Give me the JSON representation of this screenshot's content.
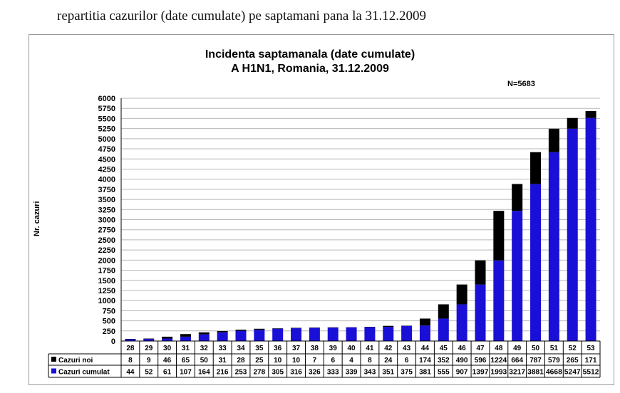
{
  "caption": "repartitia cazurilor (date cumulate) pe saptamani pana la 31.12.2009",
  "chart_data": {
    "type": "bar",
    "stacked": true,
    "title": "Incidenta saptamanala (date cumulate)",
    "subtitle": "A H1N1, Romania,  31.12.2009",
    "annotation": "N=5683",
    "ylabel": "Nr. cazuri",
    "xlabel": "",
    "ylim": [
      0,
      6000
    ],
    "yticks": [
      0,
      250,
      500,
      750,
      1000,
      1250,
      1500,
      1750,
      2000,
      2250,
      2500,
      2750,
      3000,
      3250,
      3500,
      3750,
      4000,
      4250,
      4500,
      4750,
      5000,
      5250,
      5500,
      5750,
      6000
    ],
    "grid": true,
    "categories": [
      "28",
      "29",
      "30",
      "31",
      "32",
      "33",
      "34",
      "35",
      "36",
      "37",
      "38",
      "39",
      "40",
      "41",
      "42",
      "43",
      "44",
      "45",
      "46",
      "47",
      "48",
      "49",
      "50",
      "51",
      "52",
      "53"
    ],
    "series": [
      {
        "name": "Cazuri cumulat",
        "color": "#1a0fd6",
        "values": [
          44,
          52,
          61,
          107,
          164,
          216,
          253,
          278,
          305,
          316,
          326,
          333,
          339,
          343,
          351,
          375,
          381,
          555,
          907,
          1397,
          1993,
          3217,
          3881,
          4668,
          5247,
          5512
        ]
      },
      {
        "name": "Cazuri noi",
        "color": "#000000",
        "values": [
          8,
          9,
          46,
          65,
          50,
          31,
          28,
          25,
          10,
          10,
          7,
          6,
          4,
          8,
          24,
          6,
          174,
          352,
          490,
          596,
          1224,
          664,
          787,
          579,
          265,
          171
        ]
      }
    ],
    "table_values": {
      "Cazuri noi": [
        "8",
        "9",
        "46",
        "65",
        "50",
        "31",
        "28",
        "25",
        "10",
        "10",
        "7",
        "6",
        "4",
        "8",
        "24",
        "6",
        "174",
        "352",
        "490",
        "596",
        "1224",
        "664",
        "787",
        "579",
        "265",
        "171"
      ],
      "Cazuri cumulat": [
        "44",
        "52",
        "61",
        "107",
        "164",
        "216",
        "253",
        "278",
        "305",
        "316",
        "326",
        "333",
        "339",
        "343",
        "351",
        "375",
        "381",
        "555",
        "907",
        "1397",
        "1993",
        "3217",
        "3881",
        "4668",
        "5247",
        "5512"
      ]
    }
  }
}
